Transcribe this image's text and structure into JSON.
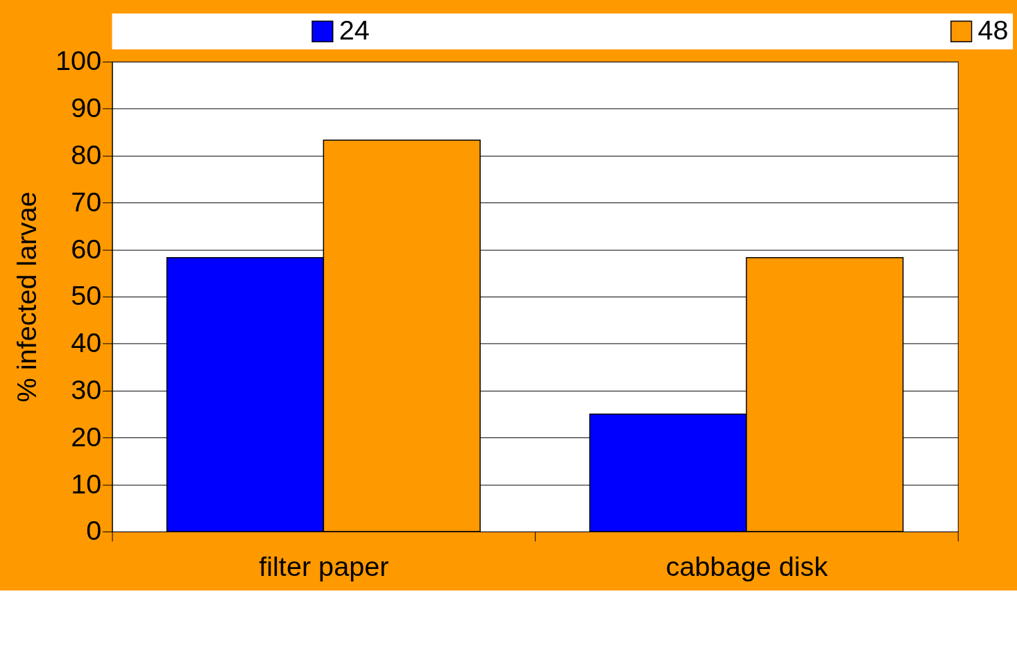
{
  "chart_data": {
    "type": "bar",
    "ylabel": "% infected larvae",
    "categories": [
      "filter paper",
      "cabbage disk"
    ],
    "series": [
      {
        "name": "24",
        "color": "#0000ff",
        "values": [
          58.3,
          25
        ]
      },
      {
        "name": "48",
        "color": "#ff9900",
        "values": [
          83.3,
          58.3
        ]
      }
    ],
    "ylim": [
      0,
      100
    ],
    "yticks": [
      0,
      10,
      20,
      30,
      40,
      50,
      60,
      70,
      80,
      90,
      100
    ],
    "grid": "y",
    "legend": "top"
  }
}
